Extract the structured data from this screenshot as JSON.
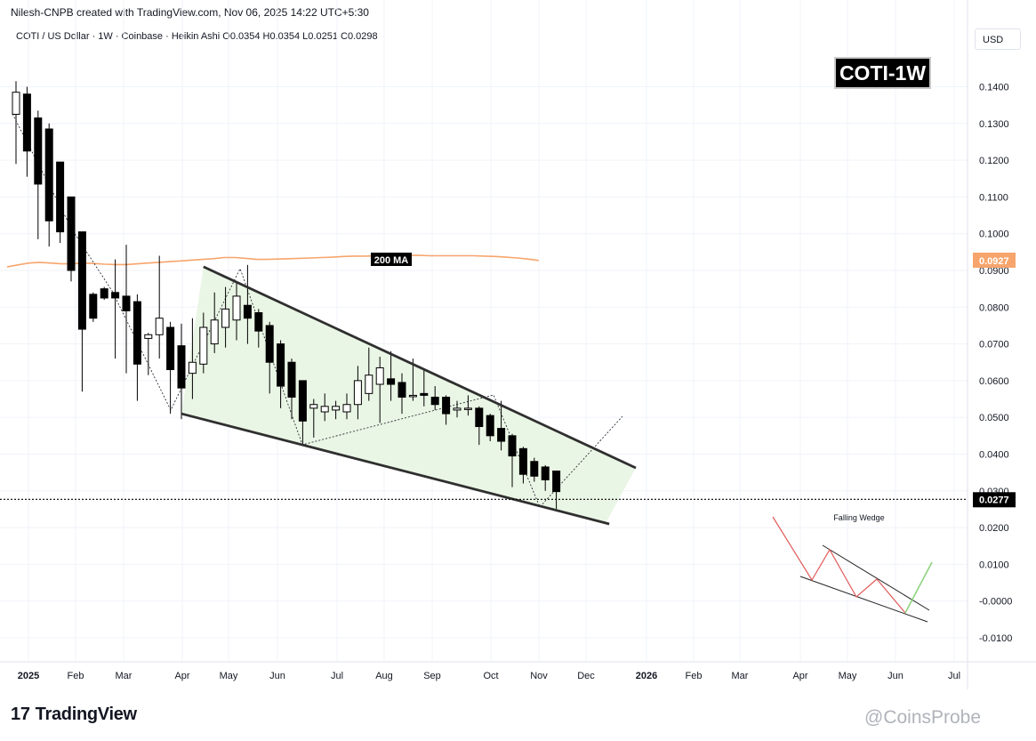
{
  "header": {
    "creator": "Nilesh-CNPB created with TradingView.com, Nov 06, 2025 14:22 UTC+5:30",
    "legend": "COTI / US Dollar · 1W · Coinbase · Heikin Ashi  O0.0354  H0.0354  L0.0251  C0.0298",
    "currency": "USD",
    "badge": "COTI-1W"
  },
  "footer": {
    "logo_text": "TradingView",
    "watermark": "@CoinsProbe"
  },
  "chart_data": {
    "type": "candlestick",
    "symbol": "COTI / US Dollar",
    "interval": "1W",
    "exchange": "Coinbase",
    "style": "Heikin Ashi",
    "ohlc_last": {
      "open": 0.0354,
      "high": 0.0354,
      "low": 0.0251,
      "close": 0.0298
    },
    "ylim": [
      -0.015,
      0.1502
    ],
    "y_ticks": [
      "0.1400",
      "0.1300",
      "0.1200",
      "0.1100",
      "0.1000",
      "0.0900",
      "0.0800",
      "0.0700",
      "0.0600",
      "0.0500",
      "0.0400",
      "0.0300",
      "0.0200",
      "0.0100",
      "-0.0000",
      "-0.0100"
    ],
    "x_ticks": [
      "2025",
      "Feb",
      "Mar",
      "Apr",
      "May",
      "Jun",
      "Jul",
      "Aug",
      "Sep",
      "Oct",
      "Nov",
      "Dec",
      "2026",
      "Feb",
      "Mar",
      "Apr",
      "May",
      "Jun",
      "Jul"
    ],
    "candles": [
      {
        "o": 0.1325,
        "h": 0.1415,
        "l": 0.119,
        "c": 0.1385
      },
      {
        "o": 0.138,
        "h": 0.14,
        "l": 0.1155,
        "c": 0.1225
      },
      {
        "o": 0.1315,
        "h": 0.1335,
        "l": 0.0985,
        "c": 0.1135
      },
      {
        "o": 0.1285,
        "h": 0.13,
        "l": 0.0965,
        "c": 0.1035
      },
      {
        "o": 0.1195,
        "h": 0.1195,
        "l": 0.0975,
        "c": 0.1005
      },
      {
        "o": 0.11,
        "h": 0.11,
        "l": 0.087,
        "c": 0.09
      },
      {
        "o": 0.1005,
        "h": 0.1005,
        "l": 0.057,
        "c": 0.074
      },
      {
        "o": 0.0835,
        "h": 0.084,
        "l": 0.076,
        "c": 0.077
      },
      {
        "o": 0.085,
        "h": 0.0855,
        "l": 0.082,
        "c": 0.0825
      },
      {
        "o": 0.084,
        "h": 0.093,
        "l": 0.066,
        "c": 0.0825
      },
      {
        "o": 0.083,
        "h": 0.097,
        "l": 0.062,
        "c": 0.079
      },
      {
        "o": 0.0815,
        "h": 0.0835,
        "l": 0.0545,
        "c": 0.0645
      },
      {
        "o": 0.0715,
        "h": 0.073,
        "l": 0.0615,
        "c": 0.0725
      },
      {
        "o": 0.0725,
        "h": 0.094,
        "l": 0.066,
        "c": 0.077
      },
      {
        "o": 0.0745,
        "h": 0.076,
        "l": 0.051,
        "c": 0.063
      },
      {
        "o": 0.0695,
        "h": 0.0755,
        "l": 0.0495,
        "c": 0.058
      },
      {
        "o": 0.062,
        "h": 0.077,
        "l": 0.055,
        "c": 0.065
      },
      {
        "o": 0.0645,
        "h": 0.0785,
        "l": 0.062,
        "c": 0.0745
      },
      {
        "o": 0.07,
        "h": 0.084,
        "l": 0.0675,
        "c": 0.0765
      },
      {
        "o": 0.0745,
        "h": 0.0855,
        "l": 0.069,
        "c": 0.0795
      },
      {
        "o": 0.0765,
        "h": 0.087,
        "l": 0.071,
        "c": 0.083
      },
      {
        "o": 0.0805,
        "h": 0.0915,
        "l": 0.07,
        "c": 0.077
      },
      {
        "o": 0.0785,
        "h": 0.0795,
        "l": 0.069,
        "c": 0.0735
      },
      {
        "o": 0.075,
        "h": 0.076,
        "l": 0.0565,
        "c": 0.065
      },
      {
        "o": 0.07,
        "h": 0.071,
        "l": 0.0525,
        "c": 0.0585
      },
      {
        "o": 0.065,
        "h": 0.066,
        "l": 0.0495,
        "c": 0.0555
      },
      {
        "o": 0.06,
        "h": 0.06,
        "l": 0.0425,
        "c": 0.049
      },
      {
        "o": 0.0525,
        "h": 0.055,
        "l": 0.0445,
        "c": 0.0535
      },
      {
        "o": 0.0515,
        "h": 0.0565,
        "l": 0.049,
        "c": 0.053
      },
      {
        "o": 0.052,
        "h": 0.0545,
        "l": 0.0495,
        "c": 0.053
      },
      {
        "o": 0.0515,
        "h": 0.0565,
        "l": 0.0495,
        "c": 0.0535
      },
      {
        "o": 0.0535,
        "h": 0.064,
        "l": 0.0495,
        "c": 0.06
      },
      {
        "o": 0.0565,
        "h": 0.069,
        "l": 0.0545,
        "c": 0.0615
      },
      {
        "o": 0.059,
        "h": 0.0665,
        "l": 0.0485,
        "c": 0.0635
      },
      {
        "o": 0.0605,
        "h": 0.068,
        "l": 0.0545,
        "c": 0.059
      },
      {
        "o": 0.0595,
        "h": 0.062,
        "l": 0.051,
        "c": 0.0555
      },
      {
        "o": 0.056,
        "h": 0.066,
        "l": 0.0545,
        "c": 0.056
      },
      {
        "o": 0.0565,
        "h": 0.063,
        "l": 0.053,
        "c": 0.056
      },
      {
        "o": 0.0555,
        "h": 0.0585,
        "l": 0.052,
        "c": 0.0535
      },
      {
        "o": 0.0555,
        "h": 0.056,
        "l": 0.048,
        "c": 0.051
      },
      {
        "o": 0.052,
        "h": 0.0545,
        "l": 0.05,
        "c": 0.0525
      },
      {
        "o": 0.0525,
        "h": 0.056,
        "l": 0.0505,
        "c": 0.0525
      },
      {
        "o": 0.0525,
        "h": 0.053,
        "l": 0.0425,
        "c": 0.0475
      },
      {
        "o": 0.0505,
        "h": 0.051,
        "l": 0.0435,
        "c": 0.045
      },
      {
        "o": 0.047,
        "h": 0.0545,
        "l": 0.041,
        "c": 0.0435
      },
      {
        "o": 0.045,
        "h": 0.0455,
        "l": 0.031,
        "c": 0.0395
      },
      {
        "o": 0.0415,
        "h": 0.042,
        "l": 0.032,
        "c": 0.0345
      },
      {
        "o": 0.038,
        "h": 0.039,
        "l": 0.0325,
        "c": 0.034
      },
      {
        "o": 0.0365,
        "h": 0.037,
        "l": 0.03,
        "c": 0.033
      },
      {
        "o": 0.0354,
        "h": 0.0354,
        "l": 0.0251,
        "c": 0.0298
      }
    ],
    "ma200": {
      "label": "200 MA",
      "current_value": "0.0927",
      "color": "#f7a56c",
      "values": [
        0.091,
        0.0915,
        0.092,
        0.0922,
        0.092,
        0.0918,
        0.0918,
        0.092,
        0.0919,
        0.0917,
        0.0916,
        0.0916,
        0.0918,
        0.092,
        0.0922,
        0.0924,
        0.0926,
        0.0928,
        0.093,
        0.0932,
        0.0935,
        0.0935,
        0.0933,
        0.093,
        0.093,
        0.0931,
        0.0932,
        0.0933,
        0.0934,
        0.0935,
        0.0936,
        0.0938,
        0.0939,
        0.0939,
        0.094,
        0.0941,
        0.0941,
        0.0941,
        0.0941,
        0.094,
        0.094,
        0.094,
        0.094,
        0.094,
        0.0939,
        0.0938,
        0.0936,
        0.0934,
        0.0931,
        0.0927
      ]
    },
    "current_price": {
      "value": "0.0277",
      "color": "#000000"
    },
    "falling_wedge": {
      "upper": [
        [
          17.0,
          0.091
        ],
        [
          50.3,
          0.0365
        ]
      ],
      "lower": [
        [
          15.0,
          0.051
        ],
        [
          53.8,
          0.021
        ]
      ],
      "projection": [
        [
          45.8,
          0.0268
        ],
        [
          53.7,
          0.0505
        ]
      ]
    },
    "inset": {
      "title": "Falling Wedge"
    }
  }
}
